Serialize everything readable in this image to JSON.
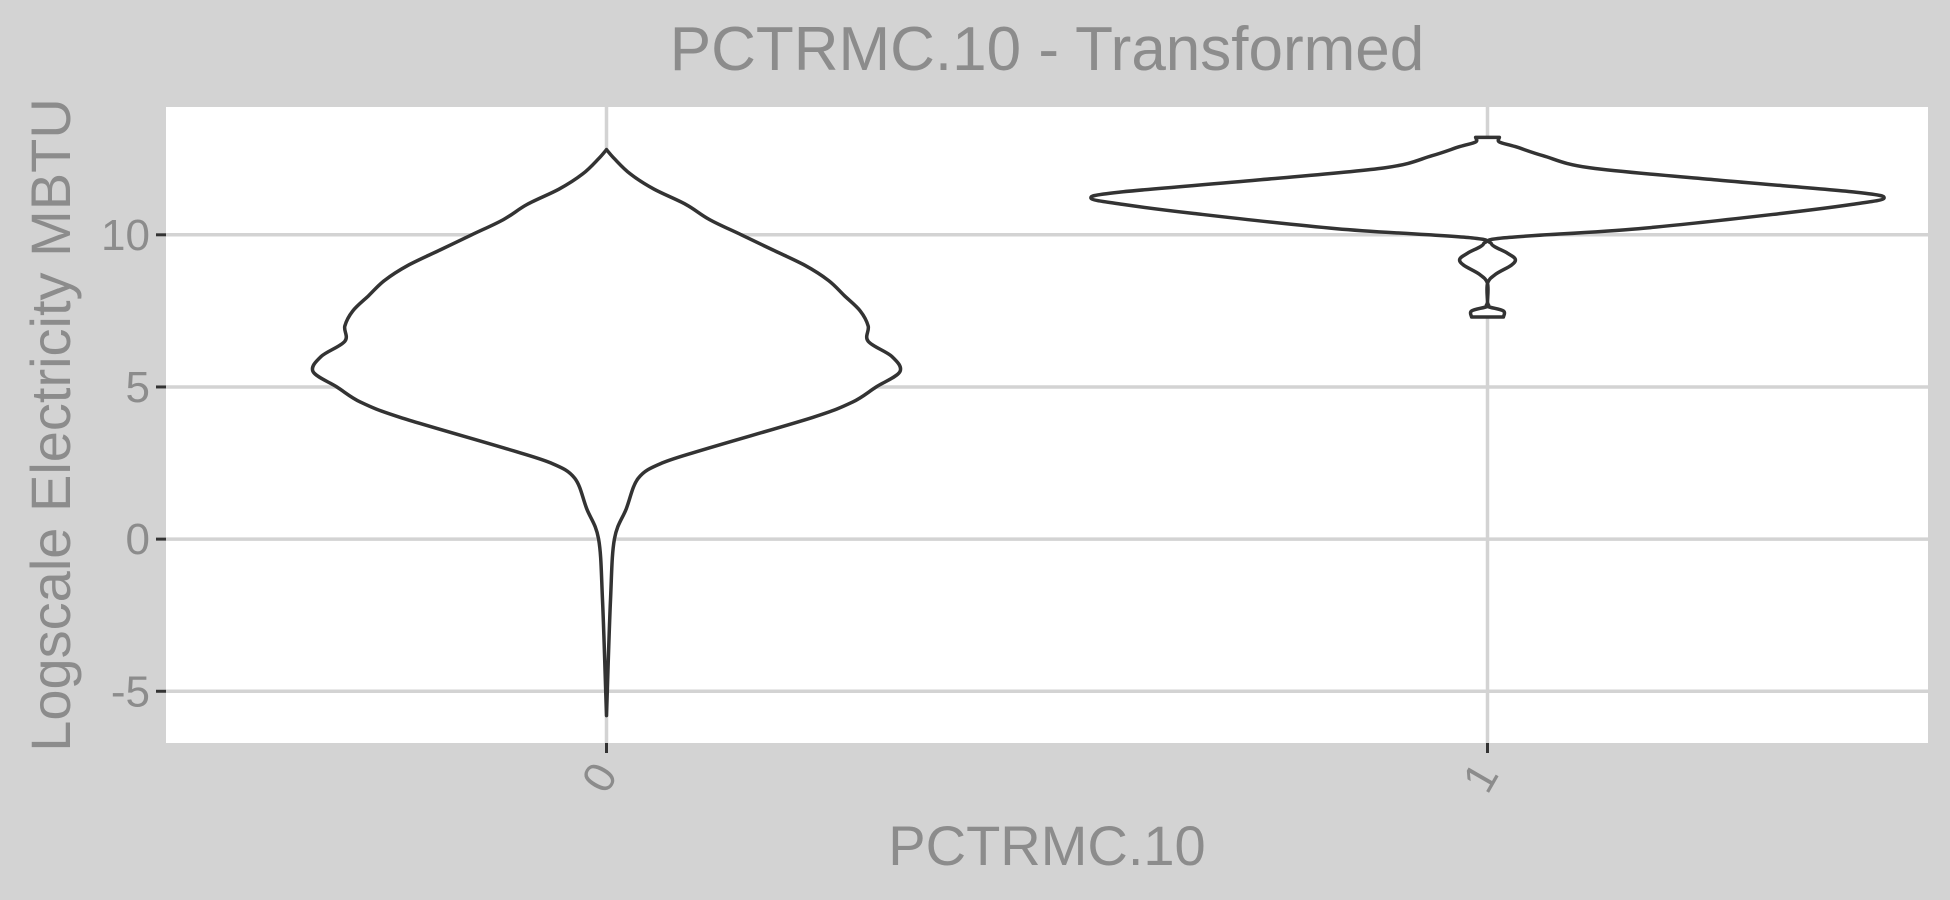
{
  "chart_data": {
    "type": "violin",
    "title": "PCTRMC.10 - Transformed",
    "xlabel": "PCTRMC.10",
    "ylabel": "Logscale Electricity MBTU",
    "categories": [
      "0",
      "1"
    ],
    "ylim": [
      -6.7,
      14.2
    ],
    "yticks": [
      -5,
      0,
      5,
      10
    ],
    "grid": true,
    "legend": "none",
    "colors": {
      "background": "#d3d3d3",
      "panel": "#ffffff",
      "gridline": "#d3d3d3",
      "outline": "#333333",
      "text": "#8c8c8c"
    },
    "violins": [
      {
        "category": "0",
        "y_min": -5.8,
        "y_max": 12.8,
        "density_profile": [
          [
            -5.8,
            0.0
          ],
          [
            -2.0,
            0.01
          ],
          [
            0.0,
            0.02
          ],
          [
            1.0,
            0.05
          ],
          [
            2.0,
            0.08
          ],
          [
            2.5,
            0.14
          ],
          [
            3.0,
            0.26
          ],
          [
            4.0,
            0.52
          ],
          [
            4.5,
            0.62
          ],
          [
            5.0,
            0.68
          ],
          [
            5.5,
            0.74
          ],
          [
            6.0,
            0.72
          ],
          [
            6.5,
            0.66
          ],
          [
            7.0,
            0.66
          ],
          [
            7.5,
            0.64
          ],
          [
            8.0,
            0.6
          ],
          [
            8.5,
            0.56
          ],
          [
            9.0,
            0.5
          ],
          [
            9.5,
            0.42
          ],
          [
            10.0,
            0.34
          ],
          [
            10.5,
            0.26
          ],
          [
            11.0,
            0.2
          ],
          [
            11.5,
            0.12
          ],
          [
            12.0,
            0.06
          ],
          [
            12.5,
            0.02
          ],
          [
            12.8,
            0.0
          ]
        ]
      },
      {
        "category": "1",
        "y_min": 7.3,
        "y_max": 13.2,
        "density_profile": [
          [
            7.3,
            0.04
          ],
          [
            7.5,
            0.04
          ],
          [
            7.65,
            0.0
          ],
          [
            7.8,
            0.0
          ],
          [
            8.4,
            0.0
          ],
          [
            8.7,
            0.02
          ],
          [
            9.0,
            0.06
          ],
          [
            9.2,
            0.07
          ],
          [
            9.4,
            0.05
          ],
          [
            9.7,
            0.01
          ],
          [
            9.9,
            0.04
          ],
          [
            10.2,
            0.38
          ],
          [
            10.7,
            0.74
          ],
          [
            11.0,
            0.92
          ],
          [
            11.2,
            1.0
          ],
          [
            11.4,
            0.93
          ],
          [
            11.8,
            0.58
          ],
          [
            12.2,
            0.26
          ],
          [
            12.6,
            0.14
          ],
          [
            12.9,
            0.07
          ],
          [
            13.05,
            0.03
          ],
          [
            13.2,
            0.03
          ]
        ]
      }
    ]
  }
}
